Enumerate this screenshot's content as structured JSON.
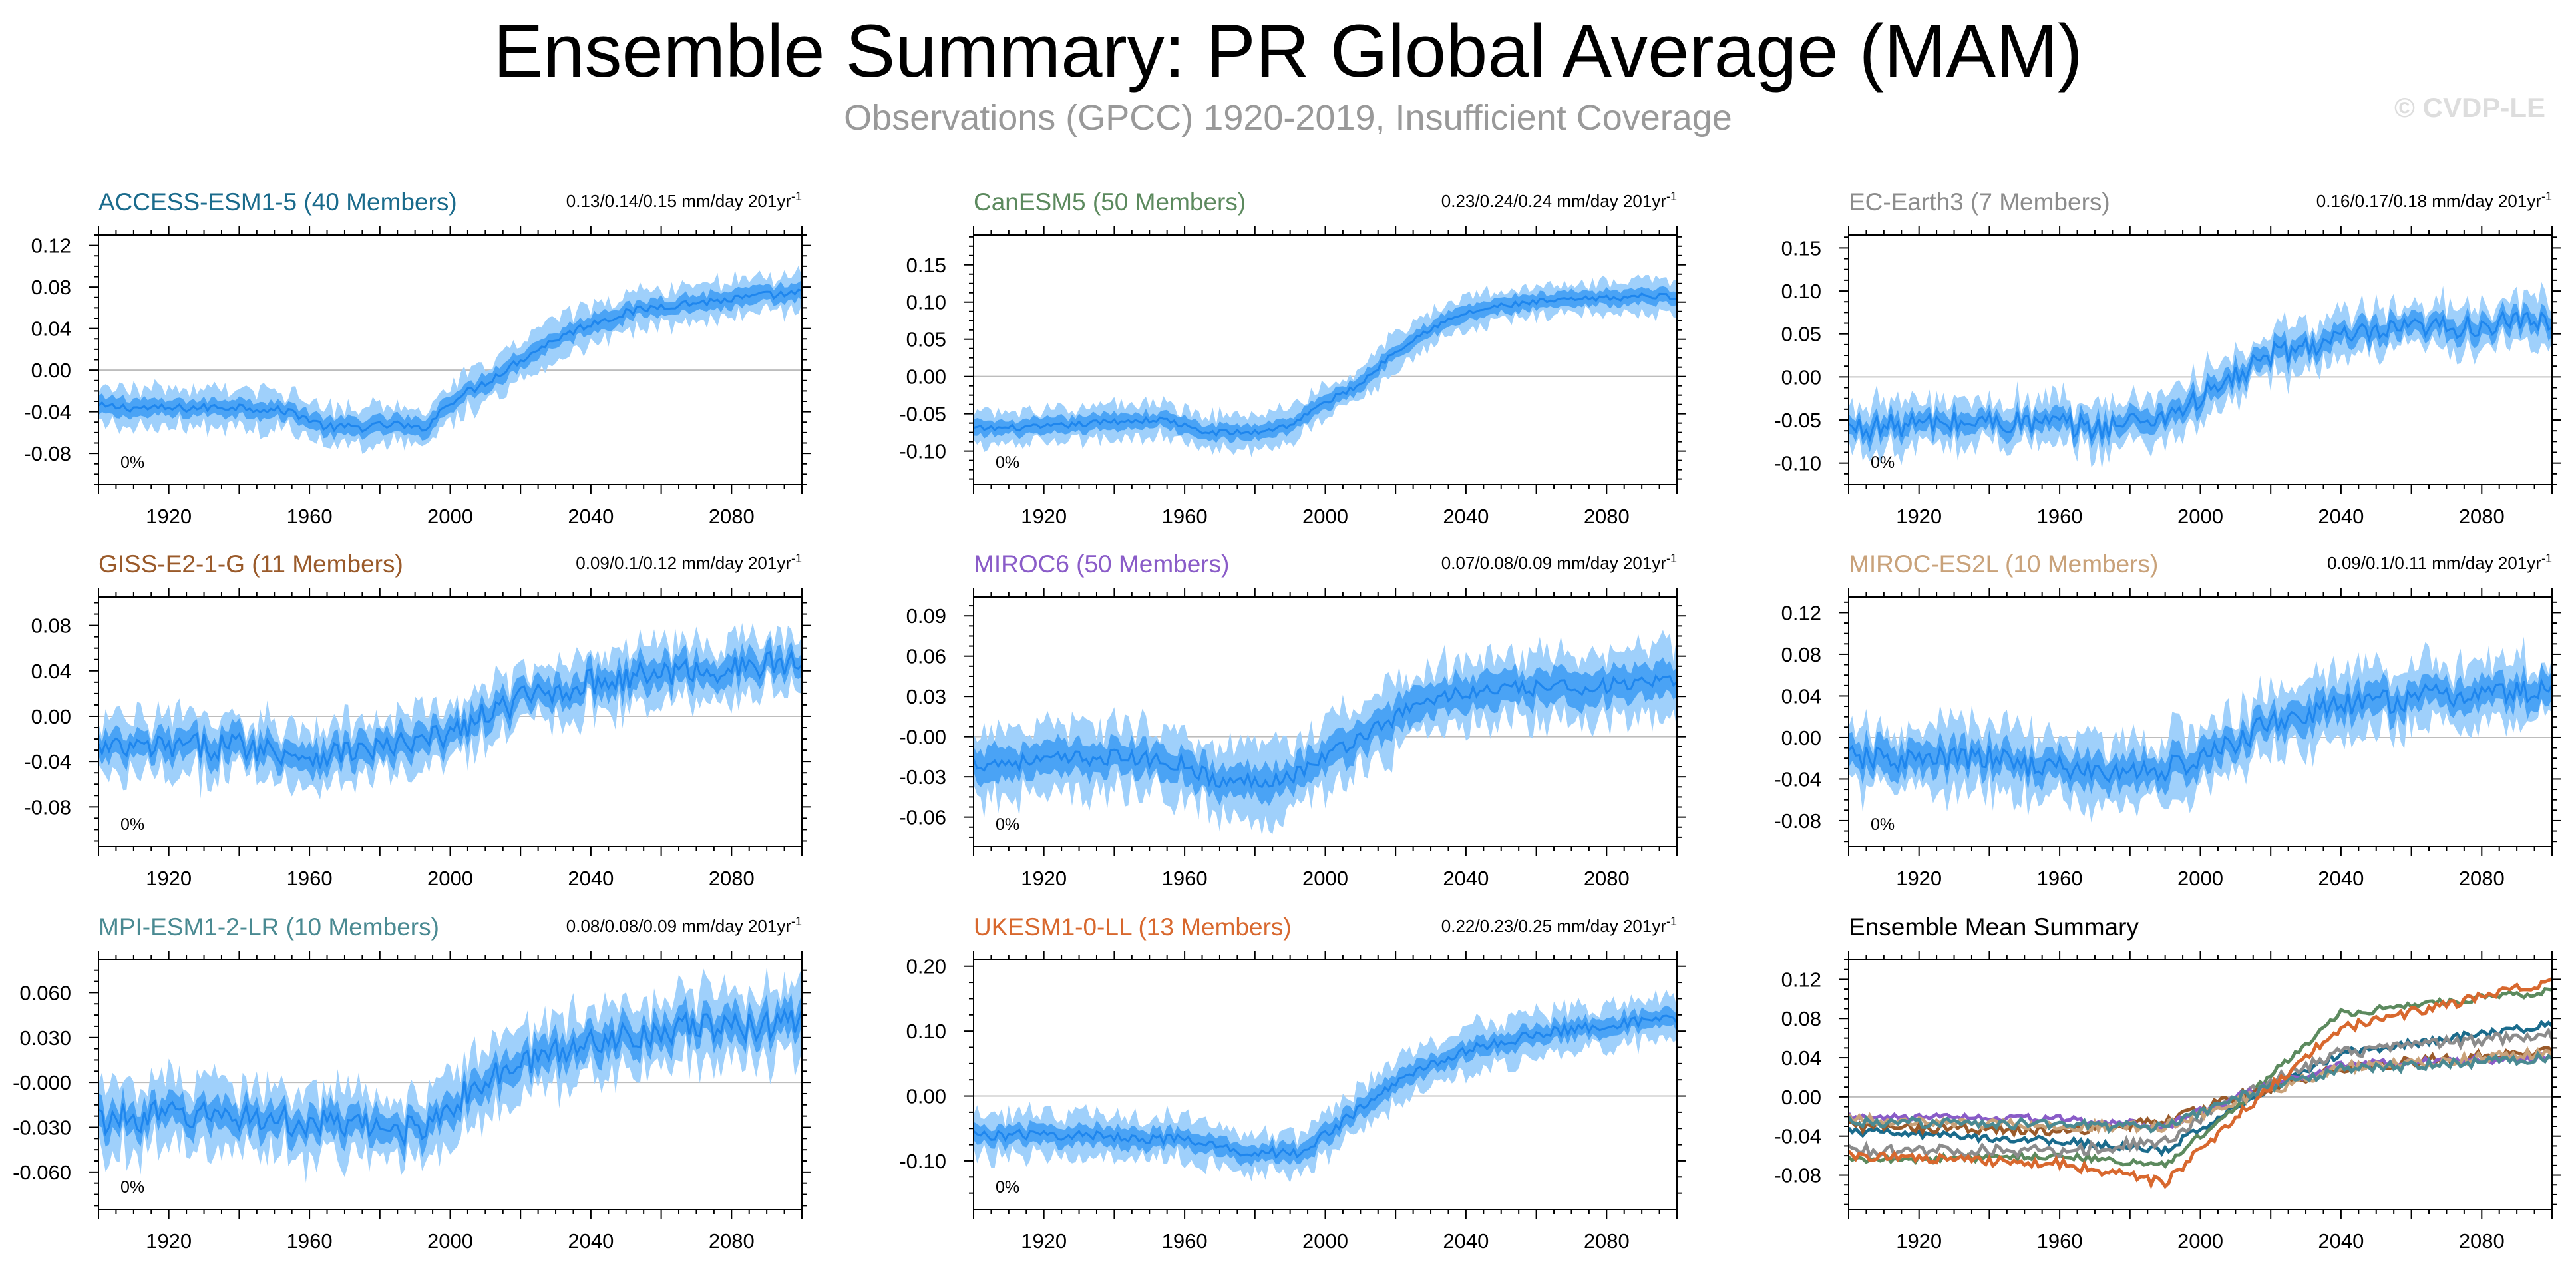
{
  "title": "Ensemble Summary: PR Global Average (MAM)",
  "subtitle": "Observations (GPCC) 1920-2019, Insufficient Coverage",
  "credit": "© CVDP-LE",
  "colors": {
    "band_outer": "#9fd0fb",
    "band_inner": "#4aa3f5",
    "mean_line": "#1e86ee",
    "zero_line": "#bdbdbd"
  },
  "chart_data": [
    {
      "type": "line",
      "title": "ACCESS-ESM1-5 (40 Members)",
      "title_color": "#1a6b8c",
      "trend_label": "0.13/0.14/0.15 mm/day 201yr",
      "trend_sup": "-1",
      "annotation": "0%",
      "xlim": [
        1900,
        2100
      ],
      "xticks": [
        1920,
        1960,
        2000,
        2040,
        2080
      ],
      "ylim": [
        -0.11,
        0.13
      ],
      "yticks": [
        -0.08,
        -0.04,
        0.0,
        0.04,
        0.08,
        0.12
      ],
      "ytick_labels": [
        "-0.08",
        "-0.04",
        "0.00",
        "0.04",
        "0.08",
        "0.12"
      ],
      "series": [
        {
          "values_x": [
            1900,
            1920,
            1940,
            1955,
            1965,
            1975,
            1985,
            1992,
            2000,
            2010,
            2020,
            2030,
            2040,
            2050,
            2060,
            2070,
            2080,
            2090,
            2100
          ],
          "values_y": [
            -0.035,
            -0.037,
            -0.035,
            -0.04,
            -0.055,
            -0.055,
            -0.052,
            -0.058,
            -0.03,
            -0.012,
            0.01,
            0.03,
            0.045,
            0.055,
            0.062,
            0.065,
            0.068,
            0.072,
            0.074
          ],
          "inner_halfwidth": 0.008,
          "outer_halfwidth": 0.018,
          "noise": 0.004
        }
      ]
    },
    {
      "type": "line",
      "title": "CanESM5 (50 Members)",
      "title_color": "#5c8a5e",
      "trend_label": "0.23/0.24/0.24 mm/day 201yr",
      "trend_sup": "-1",
      "annotation": "0%",
      "xlim": [
        1900,
        2100
      ],
      "xticks": [
        1920,
        1960,
        2000,
        2040,
        2080
      ],
      "ylim": [
        -0.145,
        0.19
      ],
      "yticks": [
        -0.1,
        -0.05,
        0.0,
        0.05,
        0.1,
        0.15
      ],
      "ytick_labels": [
        "-0.10",
        "-0.05",
        "0.00",
        "0.05",
        "0.10",
        "0.15"
      ],
      "series": [
        {
          "values_x": [
            1900,
            1920,
            1940,
            1955,
            1965,
            1980,
            1990,
            2000,
            2010,
            2020,
            2030,
            2040,
            2050,
            2060,
            2070,
            2080,
            2090,
            2100
          ],
          "values_y": [
            -0.07,
            -0.068,
            -0.06,
            -0.058,
            -0.075,
            -0.075,
            -0.065,
            -0.035,
            -0.01,
            0.035,
            0.065,
            0.085,
            0.095,
            0.1,
            0.103,
            0.105,
            0.108,
            0.108
          ],
          "inner_halfwidth": 0.01,
          "outer_halfwidth": 0.022,
          "noise": 0.004
        }
      ]
    },
    {
      "type": "line",
      "title": "EC-Earth3 (7 Members)",
      "title_color": "#8c8c8c",
      "trend_label": "0.16/0.17/0.18 mm/day 201yr",
      "trend_sup": "-1",
      "annotation": "0%",
      "xlim": [
        1900,
        2100
      ],
      "xticks": [
        1920,
        1960,
        2000,
        2040,
        2080
      ],
      "ylim": [
        -0.125,
        0.165
      ],
      "yticks": [
        -0.1,
        -0.05,
        0.0,
        0.05,
        0.1,
        0.15
      ],
      "ytick_labels": [
        "-0.10",
        "-0.05",
        "0.00",
        "0.05",
        "0.10",
        "0.15"
      ],
      "series": [
        {
          "values_x": [
            1900,
            1920,
            1940,
            1960,
            1970,
            1990,
            2000,
            2010,
            2020,
            2040,
            2060,
            2080,
            2100
          ],
          "values_y": [
            -0.06,
            -0.055,
            -0.052,
            -0.055,
            -0.06,
            -0.045,
            -0.025,
            0.0,
            0.025,
            0.045,
            0.055,
            0.06,
            0.065
          ],
          "inner_halfwidth": 0.012,
          "outer_halfwidth": 0.026,
          "noise": 0.014
        }
      ]
    },
    {
      "type": "line",
      "title": "GISS-E2-1-G (11 Members)",
      "title_color": "#9a5a2a",
      "trend_label": "0.09/0.1/0.12 mm/day 201yr",
      "trend_sup": "-1",
      "annotation": "0%",
      "xlim": [
        1900,
        2100
      ],
      "xticks": [
        1920,
        1960,
        2000,
        2040,
        2080
      ],
      "ylim": [
        -0.115,
        0.105
      ],
      "yticks": [
        -0.08,
        -0.04,
        0.0,
        0.04,
        0.08
      ],
      "ytick_labels": [
        "-0.08",
        "-0.04",
        "0.00",
        "0.04",
        "0.08"
      ],
      "series": [
        {
          "values_x": [
            1900,
            1920,
            1940,
            1960,
            1975,
            1990,
            2000,
            2010,
            2020,
            2040,
            2060,
            2080,
            2100
          ],
          "values_y": [
            -0.03,
            -0.028,
            -0.025,
            -0.035,
            -0.03,
            -0.025,
            -0.015,
            0.0,
            0.015,
            0.03,
            0.038,
            0.042,
            0.048
          ],
          "inner_halfwidth": 0.012,
          "outer_halfwidth": 0.025,
          "noise": 0.012
        }
      ]
    },
    {
      "type": "line",
      "title": "MIROC6 (50 Members)",
      "title_color": "#8a5cc8",
      "trend_label": "0.07/0.08/0.09 mm/day 201yr",
      "trend_sup": "-1",
      "annotation": "0%",
      "xlim": [
        1900,
        2100
      ],
      "xticks": [
        1920,
        1960,
        2000,
        2040,
        2080
      ],
      "ylim": [
        -0.082,
        0.104
      ],
      "yticks": [
        -0.06,
        -0.03,
        0.0,
        0.03,
        0.06,
        0.09
      ],
      "ytick_labels": [
        "-0.06",
        "-0.03",
        "-0.00",
        "0.03",
        "0.06",
        "0.09"
      ],
      "series": [
        {
          "values_x": [
            1900,
            1920,
            1940,
            1960,
            1970,
            1990,
            2000,
            2010,
            2020,
            2030,
            2040,
            2060,
            2080,
            2100
          ],
          "values_y": [
            -0.02,
            -0.018,
            -0.015,
            -0.02,
            -0.035,
            -0.03,
            -0.015,
            0.0,
            0.015,
            0.028,
            0.033,
            0.036,
            0.038,
            0.04
          ],
          "inner_halfwidth": 0.012,
          "outer_halfwidth": 0.025,
          "noise": 0.006
        }
      ]
    },
    {
      "type": "line",
      "title": "MIROC-ES2L (10 Members)",
      "title_color": "#c9a27a",
      "trend_label": "0.09/0.1/0.11 mm/day 201yr",
      "trend_sup": "-1",
      "annotation": "0%",
      "xlim": [
        1900,
        2100
      ],
      "xticks": [
        1920,
        1960,
        2000,
        2040,
        2080
      ],
      "ylim": [
        -0.105,
        0.135
      ],
      "yticks": [
        -0.08,
        -0.04,
        0.0,
        0.04,
        0.08,
        0.12
      ],
      "ytick_labels": [
        "-0.08",
        "-0.04",
        "0.00",
        "0.04",
        "0.08",
        "0.12"
      ],
      "series": [
        {
          "values_x": [
            1900,
            1920,
            1940,
            1960,
            1975,
            1990,
            2000,
            2010,
            2020,
            2040,
            2060,
            2080,
            2100
          ],
          "values_y": [
            -0.02,
            -0.022,
            -0.02,
            -0.03,
            -0.035,
            -0.03,
            -0.022,
            -0.005,
            0.015,
            0.03,
            0.038,
            0.042,
            0.045
          ],
          "inner_halfwidth": 0.014,
          "outer_halfwidth": 0.03,
          "noise": 0.012
        }
      ]
    },
    {
      "type": "line",
      "title": "MPI-ESM1-2-LR (10 Members)",
      "title_color": "#4a8a92",
      "trend_label": "0.08/0.08/0.09 mm/day 201yr",
      "trend_sup": "-1",
      "annotation": "0%",
      "xlim": [
        1900,
        2100
      ],
      "xticks": [
        1920,
        1960,
        2000,
        2040,
        2080
      ],
      "ylim": [
        -0.085,
        0.082
      ],
      "yticks": [
        -0.06,
        -0.03,
        0.0,
        0.03,
        0.06
      ],
      "ytick_labels": [
        "-0.060",
        "-0.030",
        "-0.000",
        "0.030",
        "0.060"
      ],
      "series": [
        {
          "values_x": [
            1900,
            1920,
            1940,
            1960,
            1975,
            1990,
            2000,
            2010,
            2020,
            2040,
            2060,
            2080,
            2100
          ],
          "values_y": [
            -0.025,
            -0.022,
            -0.022,
            -0.028,
            -0.03,
            -0.032,
            -0.015,
            0.0,
            0.012,
            0.028,
            0.035,
            0.037,
            0.04
          ],
          "inner_halfwidth": 0.01,
          "outer_halfwidth": 0.022,
          "noise": 0.01
        }
      ]
    },
    {
      "type": "line",
      "title": "UKESM1-0-LL (13 Members)",
      "title_color": "#d8682e",
      "trend_label": "0.22/0.23/0.25 mm/day 201yr",
      "trend_sup": "-1",
      "annotation": "0%",
      "xlim": [
        1900,
        2100
      ],
      "xticks": [
        1920,
        1960,
        2000,
        2040,
        2080
      ],
      "ylim": [
        -0.175,
        0.21
      ],
      "yticks": [
        -0.1,
        0.0,
        0.1,
        0.2
      ],
      "ytick_labels": [
        "-0.10",
        "0.00",
        "0.10",
        "0.20"
      ],
      "series": [
        {
          "values_x": [
            1900,
            1920,
            1940,
            1960,
            1975,
            1992,
            2000,
            2010,
            2020,
            2030,
            2040,
            2060,
            2080,
            2100
          ],
          "values_y": [
            -0.06,
            -0.06,
            -0.062,
            -0.068,
            -0.085,
            -0.088,
            -0.06,
            -0.02,
            0.02,
            0.05,
            0.07,
            0.095,
            0.11,
            0.118
          ],
          "inner_halfwidth": 0.014,
          "outer_halfwidth": 0.032,
          "noise": 0.008
        }
      ]
    },
    {
      "type": "line",
      "title": "Ensemble Mean Summary",
      "title_color": "#000000",
      "trend_label": "",
      "trend_sup": "",
      "annotation": "",
      "xlim": [
        1900,
        2100
      ],
      "xticks": [
        1920,
        1960,
        2000,
        2040,
        2080
      ],
      "ylim": [
        -0.115,
        0.14
      ],
      "yticks": [
        -0.08,
        -0.04,
        0.0,
        0.04,
        0.08,
        0.12
      ],
      "ytick_labels": [
        "-0.08",
        "-0.04",
        "0.00",
        "0.04",
        "0.08",
        "0.12"
      ],
      "series": [
        {
          "color": "#1a6b8c",
          "values_x": [
            1900,
            1960,
            1990,
            2010,
            2040,
            2100
          ],
          "values_y": [
            -0.035,
            -0.045,
            -0.055,
            -0.01,
            0.045,
            0.074
          ],
          "noise": 0.004
        },
        {
          "color": "#5c8a5e",
          "values_x": [
            1900,
            1960,
            1990,
            2010,
            2040,
            2100
          ],
          "values_y": [
            -0.065,
            -0.06,
            -0.07,
            -0.01,
            0.085,
            0.108
          ],
          "noise": 0.004
        },
        {
          "color": "#8c8c8c",
          "values_x": [
            1900,
            1960,
            1990,
            2010,
            2040,
            2100
          ],
          "values_y": [
            -0.055,
            -0.055,
            -0.045,
            0.0,
            0.045,
            0.065
          ],
          "noise": 0.006
        },
        {
          "color": "#9a5a2a",
          "values_x": [
            1900,
            1960,
            1990,
            2010,
            2040,
            2100
          ],
          "values_y": [
            -0.03,
            -0.035,
            -0.025,
            0.0,
            0.03,
            0.048
          ],
          "noise": 0.005
        },
        {
          "color": "#8a5cc8",
          "values_x": [
            1900,
            1960,
            1990,
            2010,
            2040,
            2100
          ],
          "values_y": [
            -0.02,
            -0.022,
            -0.03,
            0.0,
            0.033,
            0.04
          ],
          "noise": 0.004
        },
        {
          "color": "#c9a27a",
          "values_x": [
            1900,
            1960,
            1990,
            2010,
            2040,
            2100
          ],
          "values_y": [
            -0.022,
            -0.03,
            -0.03,
            -0.005,
            0.03,
            0.045
          ],
          "noise": 0.005
        },
        {
          "color": "#4a8a92",
          "values_x": [
            1900,
            1960,
            1990,
            2010,
            2040,
            2100
          ],
          "values_y": [
            -0.025,
            -0.028,
            -0.032,
            0.0,
            0.028,
            0.04
          ],
          "noise": 0.005
        },
        {
          "color": "#d8682e",
          "values_x": [
            1900,
            1960,
            1990,
            2010,
            2040,
            2100
          ],
          "values_y": [
            -0.06,
            -0.068,
            -0.088,
            -0.02,
            0.07,
            0.118
          ],
          "noise": 0.005
        }
      ]
    }
  ]
}
